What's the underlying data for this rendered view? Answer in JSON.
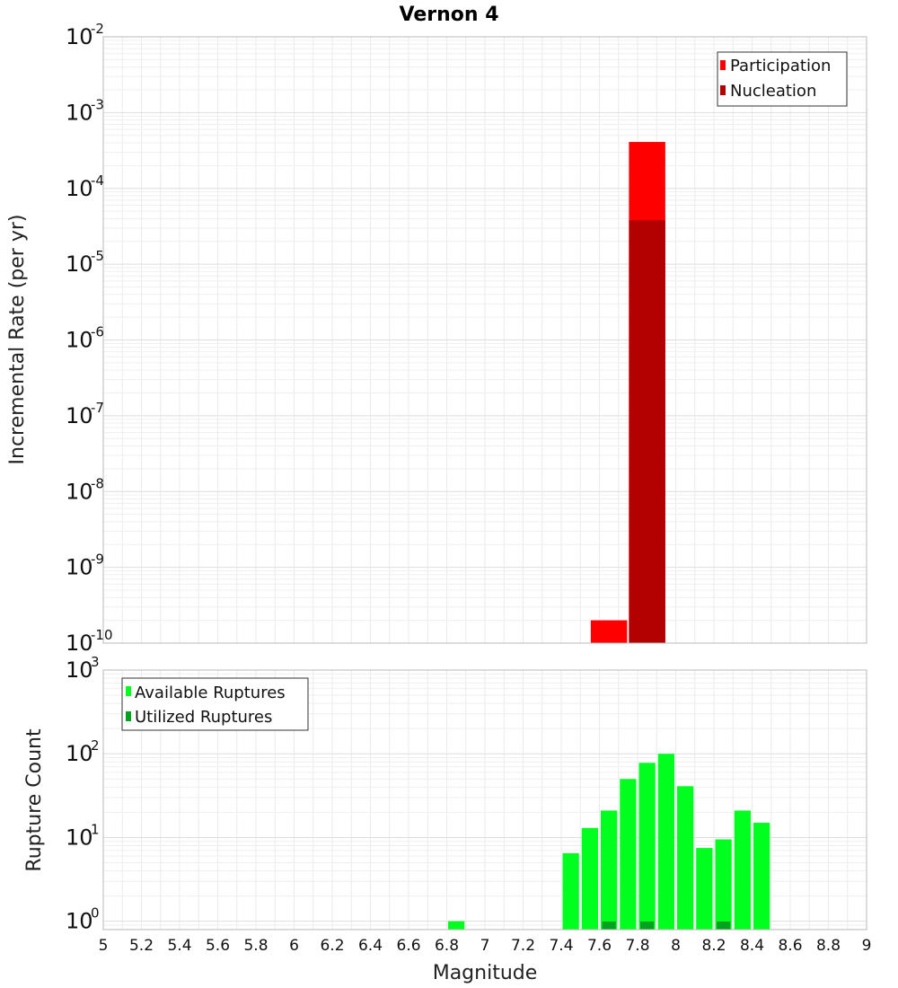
{
  "chart_data": [
    {
      "type": "bar",
      "title": "Vernon 4",
      "xlabel": "",
      "ylabel": "Incremental Rate (per yr)",
      "yscale": "log",
      "xlim": [
        5,
        9
      ],
      "ylim_exponents": [
        -10,
        -2
      ],
      "ytick_base": "10",
      "ytick_exponents": [
        "-10",
        "-9",
        "-8",
        "-7",
        "-6",
        "-5",
        "-4",
        "-3",
        "-2"
      ],
      "bin_width": 0.2,
      "legend_position": "top-right",
      "series": [
        {
          "name": "Participation",
          "color": "#ff0000",
          "points": [
            {
              "x": 7.65,
              "y": 2e-10
            },
            {
              "x": 7.85,
              "y": 0.00041
            }
          ]
        },
        {
          "name": "Nucleation",
          "color": "#b30000",
          "points": [
            {
              "x": 7.85,
              "y": 3.8e-05
            }
          ]
        }
      ]
    },
    {
      "type": "bar",
      "title": "",
      "xlabel": "Magnitude",
      "ylabel": "Rupture Count",
      "yscale": "log",
      "xlim": [
        5,
        9
      ],
      "ylim_exponents": [
        -0.1,
        3
      ],
      "ytick_base": "10",
      "ytick_exponents": [
        "0",
        "1",
        "2",
        "3"
      ],
      "xtick_labels": [
        "5",
        "5.2",
        "5.4",
        "5.6",
        "5.8",
        "6",
        "6.2",
        "6.4",
        "6.6",
        "6.8",
        "7",
        "7.2",
        "7.4",
        "7.6",
        "7.8",
        "8",
        "8.2",
        "8.4",
        "8.6",
        "8.8",
        "9"
      ],
      "bin_width": 0.1,
      "legend_position": "top-left",
      "series": [
        {
          "name": "Available Ruptures",
          "color": "#00ff1e",
          "points": [
            {
              "x": 6.85,
              "y": 1
            },
            {
              "x": 7.45,
              "y": 6.5
            },
            {
              "x": 7.55,
              "y": 13
            },
            {
              "x": 7.65,
              "y": 21
            },
            {
              "x": 7.75,
              "y": 50
            },
            {
              "x": 7.85,
              "y": 78
            },
            {
              "x": 7.95,
              "y": 100
            },
            {
              "x": 8.05,
              "y": 41
            },
            {
              "x": 8.15,
              "y": 7.5
            },
            {
              "x": 8.25,
              "y": 9.5
            },
            {
              "x": 8.35,
              "y": 21
            },
            {
              "x": 8.45,
              "y": 15
            }
          ]
        },
        {
          "name": "Utilized Ruptures",
          "color": "#00a31e",
          "points": [
            {
              "x": 7.65,
              "y": 1
            },
            {
              "x": 7.85,
              "y": 1
            },
            {
              "x": 8.25,
              "y": 1
            }
          ]
        }
      ]
    }
  ]
}
